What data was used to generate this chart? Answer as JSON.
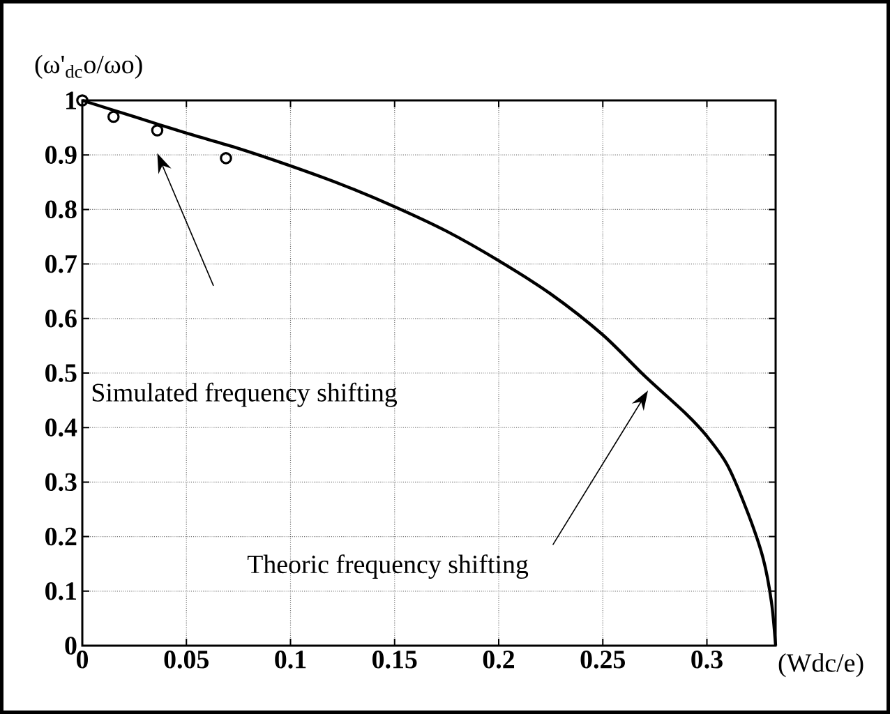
{
  "chart_data": {
    "type": "line",
    "xlabel": "(Wdc/e)",
    "ylabel": "(ω'$_{dc}$o/ωo)",
    "xlim": [
      0,
      0.333
    ],
    "ylim": [
      0,
      1
    ],
    "xticks": [
      0,
      0.05,
      0.1,
      0.15,
      0.2,
      0.25,
      0.3
    ],
    "yticks": [
      0,
      0.1,
      0.2,
      0.3,
      0.4,
      0.5,
      0.6,
      0.7,
      0.8,
      0.9,
      1
    ],
    "grid": true,
    "series": [
      {
        "color": "#000000",
        "marker": "none",
        "x": [
          0,
          0.025,
          0.05,
          0.075,
          0.1,
          0.125,
          0.15,
          0.175,
          0.2,
          0.225,
          0.25,
          0.27,
          0.29,
          0.3,
          0.31,
          0.32,
          0.327,
          0.331,
          0.333
        ],
        "values": [
          1,
          0.97,
          0.94,
          0.912,
          0.88,
          0.845,
          0.805,
          0.76,
          0.706,
          0.645,
          0.57,
          0.495,
          0.425,
          0.384,
          0.33,
          0.24,
          0.16,
          0.08,
          0
        ]
      },
      {
        "type": "scatter",
        "color": "#000000",
        "marker": "circle",
        "x": [
          0,
          0.015,
          0.036,
          0.069
        ],
        "values": [
          1,
          0.97,
          0.945,
          0.894
        ]
      }
    ],
    "annotations": [
      "Simulated frequency shifting",
      "Theoric frequency shifting"
    ]
  }
}
